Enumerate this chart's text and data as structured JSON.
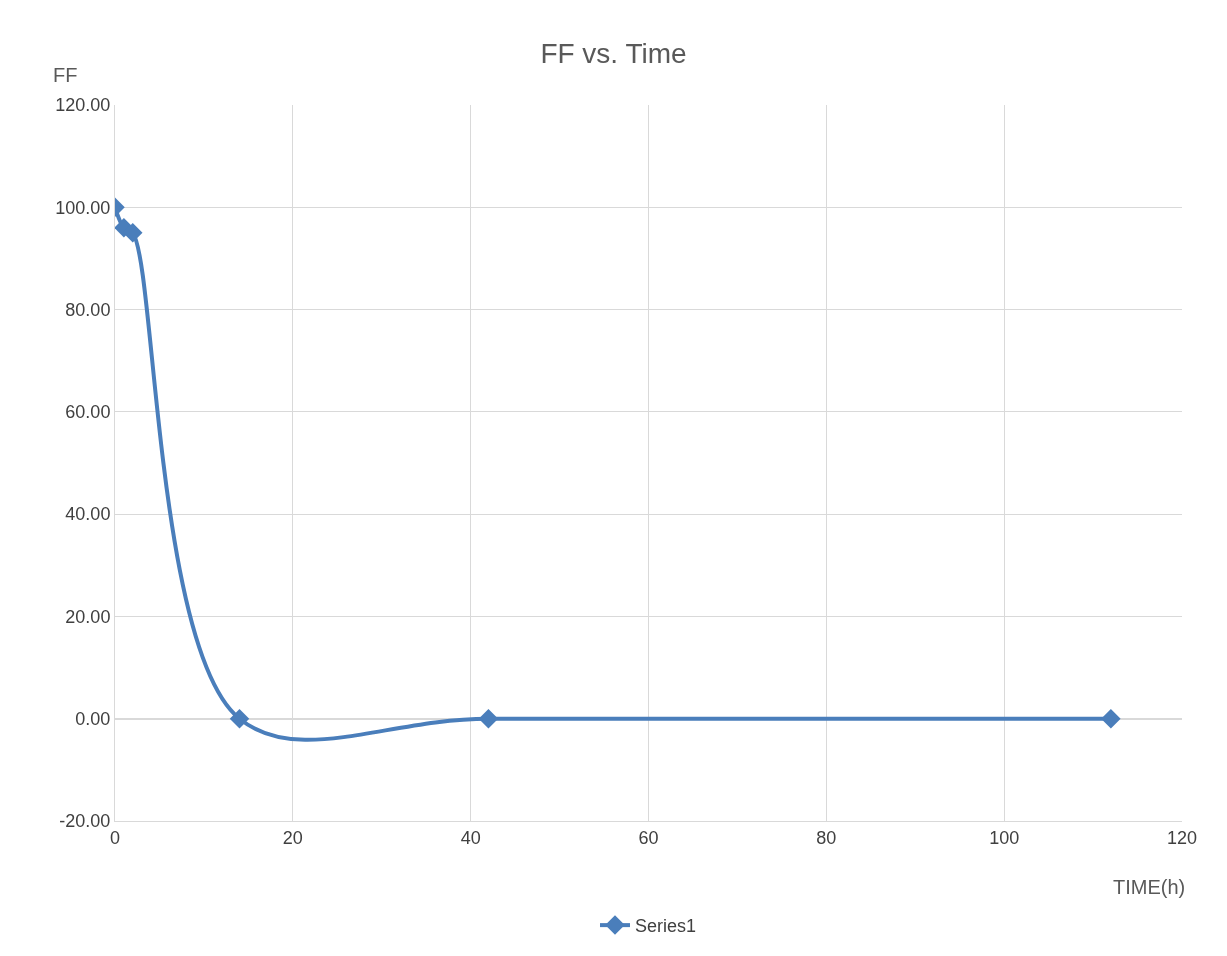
{
  "chart_data": {
    "type": "line",
    "title": "FF vs. Time",
    "ylabel": "FF",
    "xlabel": "TIME(h)",
    "x": [
      0,
      1,
      2,
      14,
      42,
      112
    ],
    "series": [
      {
        "name": "Series1",
        "color": "#4a7ebb",
        "values": [
          100,
          96,
          95,
          0,
          0,
          0
        ]
      }
    ],
    "xlim": [
      0,
      120
    ],
    "xticks": [
      0,
      20,
      40,
      60,
      80,
      100,
      120
    ],
    "ylim": [
      -20,
      120
    ],
    "yticks": [
      {
        "value": -20,
        "label": "-20.00"
      },
      {
        "value": 0,
        "label": "0.00"
      },
      {
        "value": 20,
        "label": "20.00"
      },
      {
        "value": 40,
        "label": "40.00"
      },
      {
        "value": 60,
        "label": "60.00"
      },
      {
        "value": 80,
        "label": "80.00"
      },
      {
        "value": 100,
        "label": "100.00"
      },
      {
        "value": 120,
        "label": "120.00"
      }
    ],
    "grid": true,
    "legend": "bottom",
    "marker": "diamond",
    "line_style": "solid"
  }
}
